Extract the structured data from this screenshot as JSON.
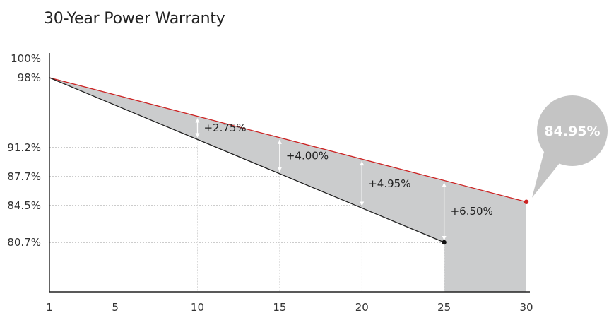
{
  "title": "30-Year Power Warranty",
  "chart_data": {
    "type": "area",
    "title": "30-Year Power Warranty",
    "x_ticks": [
      1,
      5,
      10,
      15,
      20,
      25,
      30
    ],
    "y_ticks": [
      {
        "value": 100,
        "label": "100%"
      },
      {
        "value": 98,
        "label": "98%"
      },
      {
        "value": 91.2,
        "label": "91.2%"
      },
      {
        "value": 87.7,
        "label": "87.7%"
      },
      {
        "value": 84.5,
        "label": "84.5%"
      },
      {
        "value": 80.7,
        "label": "80.7%"
      }
    ],
    "xlim": [
      1,
      30
    ],
    "ylim": [
      73,
      102
    ],
    "series": [
      {
        "color": "#cc2222",
        "points": [
          [
            1,
            98
          ],
          [
            30,
            84.95
          ]
        ]
      },
      {
        "color": "#222222",
        "points": [
          [
            1,
            98
          ],
          [
            25,
            80.7
          ]
        ]
      }
    ],
    "annotations": [
      {
        "x": 10,
        "label": "+2.75%"
      },
      {
        "x": 15,
        "label": "+4.00%"
      },
      {
        "x": 20,
        "label": "+4.95%"
      },
      {
        "x": 25,
        "label": "+6.50%"
      }
    ],
    "callout": {
      "x": 30,
      "y": 84.95,
      "label": "84.95%"
    },
    "colors": {
      "fill": "#cbcccd",
      "callout": "#c4c4c4",
      "red": "#cc2222",
      "black": "#111111"
    }
  }
}
